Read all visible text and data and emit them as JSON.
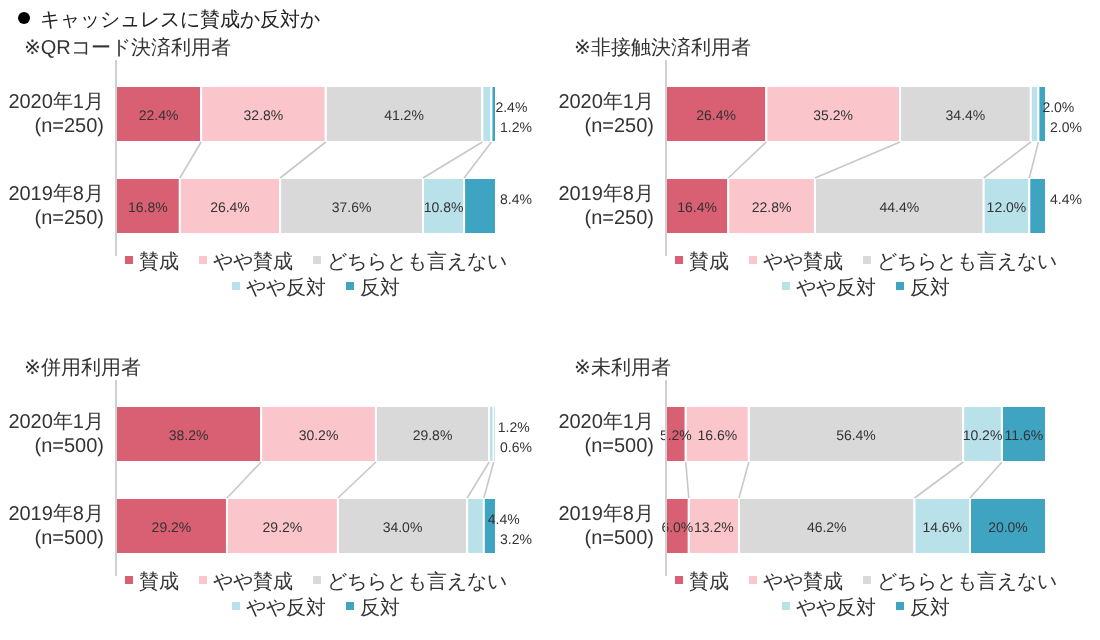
{
  "chart_data": [
    {
      "type": "bar",
      "orientation": "horizontal",
      "stacked": true,
      "title": "キャッシュレスに賛成か反対か",
      "subtitle": "※QRコード決済利用者",
      "categories": [
        "2020年1月\n(n=250)",
        "2019年8月\n(n=250)"
      ],
      "legend": "bottom",
      "series": [
        {
          "name": "賛成",
          "color": "#d95f73",
          "values": [
            22.4,
            16.8
          ],
          "value_labels": [
            "22.4%",
            "16.8%"
          ]
        },
        {
          "name": "やや賛成",
          "color": "#fbc6cb",
          "values": [
            32.8,
            26.4
          ],
          "value_labels": [
            "32.8%",
            "26.4%"
          ]
        },
        {
          "name": "どちらとも言えない",
          "color": "#d9d9d9",
          "values": [
            41.2,
            37.6
          ],
          "value_labels": [
            "41.2%",
            "37.6%"
          ]
        },
        {
          "name": "やや反対",
          "color": "#b9e1ea",
          "values": [
            2.4,
            10.8
          ],
          "value_labels": [
            "2.4%",
            "10.8%"
          ]
        },
        {
          "name": "反対",
          "color": "#3ea4c1",
          "values": [
            1.2,
            8.4
          ],
          "value_labels": [
            "1.2%",
            "8.4%"
          ]
        }
      ]
    },
    {
      "type": "bar",
      "orientation": "horizontal",
      "stacked": true,
      "subtitle": "※非接触決済利用者",
      "categories": [
        "2020年1月\n(n=250)",
        "2019年8月\n(n=250)"
      ],
      "legend": "bottom",
      "series": [
        {
          "name": "賛成",
          "color": "#d95f73",
          "values": [
            26.4,
            16.4
          ],
          "value_labels": [
            "26.4%",
            "16.4%"
          ]
        },
        {
          "name": "やや賛成",
          "color": "#fbc6cb",
          "values": [
            35.2,
            22.8
          ],
          "value_labels": [
            "35.2%",
            "22.8%"
          ]
        },
        {
          "name": "どちらとも言えない",
          "color": "#d9d9d9",
          "values": [
            34.4,
            44.4
          ],
          "value_labels": [
            "34.4%",
            "44.4%"
          ]
        },
        {
          "name": "やや反対",
          "color": "#b9e1ea",
          "values": [
            2.0,
            12.0
          ],
          "value_labels": [
            "2.0%",
            "12.0%"
          ]
        },
        {
          "name": "反対",
          "color": "#3ea4c1",
          "values": [
            2.0,
            4.4
          ],
          "value_labels": [
            "2.0%",
            "4.4%"
          ]
        }
      ]
    },
    {
      "type": "bar",
      "orientation": "horizontal",
      "stacked": true,
      "subtitle": "※併用利用者",
      "categories": [
        "2020年1月\n(n=500)",
        "2019年8月\n(n=500)"
      ],
      "legend": "bottom",
      "series": [
        {
          "name": "賛成",
          "color": "#d95f73",
          "values": [
            38.2,
            29.2
          ],
          "value_labels": [
            "38.2%",
            "29.2%"
          ]
        },
        {
          "name": "やや賛成",
          "color": "#fbc6cb",
          "values": [
            30.2,
            29.2
          ],
          "value_labels": [
            "30.2%",
            "29.2%"
          ]
        },
        {
          "name": "どちらとも言えない",
          "color": "#d9d9d9",
          "values": [
            29.8,
            34.0
          ],
          "value_labels": [
            "29.8%",
            "34.0%"
          ]
        },
        {
          "name": "やや反対",
          "color": "#b9e1ea",
          "values": [
            1.2,
            4.4
          ],
          "value_labels": [
            "1.2%",
            "4.4%"
          ]
        },
        {
          "name": "反対",
          "color": "#3ea4c1",
          "values": [
            0.6,
            3.2
          ],
          "value_labels": [
            "0.6%",
            "3.2%"
          ]
        }
      ]
    },
    {
      "type": "bar",
      "orientation": "horizontal",
      "stacked": true,
      "subtitle": "※未利用者",
      "categories": [
        "2020年1月\n(n=500)",
        "2019年8月\n(n=500)"
      ],
      "legend": "bottom",
      "series": [
        {
          "name": "賛成",
          "color": "#d95f73",
          "values": [
            5.2,
            6.0
          ],
          "value_labels": [
            "5.2%",
            "6.0%"
          ]
        },
        {
          "name": "やや賛成",
          "color": "#fbc6cb",
          "values": [
            16.6,
            13.2
          ],
          "value_labels": [
            "16.6%",
            "13.2%"
          ]
        },
        {
          "name": "どちらとも言えない",
          "color": "#d9d9d9",
          "values": [
            56.4,
            46.2
          ],
          "value_labels": [
            "56.4%",
            "46.2%"
          ]
        },
        {
          "name": "やや反対",
          "color": "#b9e1ea",
          "values": [
            10.2,
            14.6
          ],
          "value_labels": [
            "10.2%",
            "14.6%"
          ]
        },
        {
          "name": "反対",
          "color": "#3ea4c1",
          "values": [
            11.6,
            20.0
          ],
          "value_labels": [
            "11.6%",
            "20.0%"
          ]
        }
      ]
    }
  ]
}
